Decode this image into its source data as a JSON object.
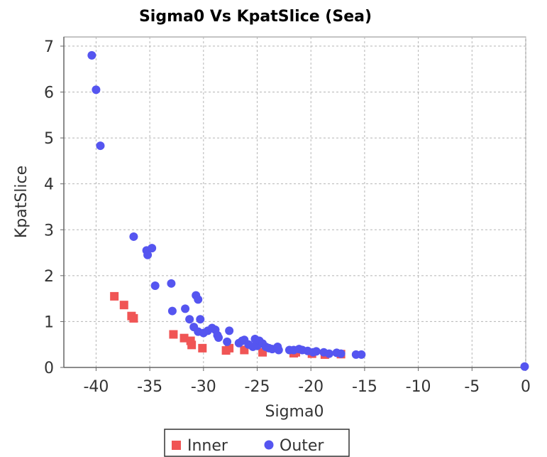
{
  "chart_data": {
    "type": "scatter",
    "title": "Sigma0 Vs KpatSlice (Sea)",
    "xlabel": "Sigma0",
    "ylabel": "KpatSlice",
    "xlim": [
      -43,
      0
    ],
    "ylim": [
      0,
      7.2
    ],
    "xticks": [
      -40,
      -35,
      -30,
      -25,
      -20,
      -15,
      -10,
      -5,
      0
    ],
    "yticks": [
      0,
      1,
      2,
      3,
      4,
      5,
      6,
      7
    ],
    "grid": true,
    "legend_position": "bottom",
    "series": [
      {
        "name": "Inner",
        "marker": "square",
        "color": "#f05555",
        "points": [
          [
            -38.3,
            1.55
          ],
          [
            -37.4,
            1.36
          ],
          [
            -36.7,
            1.12
          ],
          [
            -36.5,
            1.07
          ],
          [
            -32.8,
            0.72
          ],
          [
            -31.8,
            0.64
          ],
          [
            -31.2,
            0.58
          ],
          [
            -31.1,
            0.49
          ],
          [
            -30.1,
            0.42
          ],
          [
            -27.9,
            0.37
          ],
          [
            -27.6,
            0.42
          ],
          [
            -26.2,
            0.38
          ],
          [
            -24.5,
            0.33
          ],
          [
            -21.6,
            0.31
          ],
          [
            -21.4,
            0.33
          ],
          [
            -19.9,
            0.3
          ],
          [
            -18.7,
            0.28
          ],
          [
            -17.2,
            0.29
          ]
        ]
      },
      {
        "name": "Outer",
        "marker": "circle",
        "color": "#5555f0",
        "points": [
          [
            -40.4,
            6.8
          ],
          [
            -40.0,
            6.05
          ],
          [
            -39.6,
            4.83
          ],
          [
            -36.5,
            2.85
          ],
          [
            -35.3,
            2.55
          ],
          [
            -35.2,
            2.45
          ],
          [
            -34.8,
            2.6
          ],
          [
            -34.5,
            1.78
          ],
          [
            -33.0,
            1.83
          ],
          [
            -32.9,
            1.23
          ],
          [
            -31.7,
            1.28
          ],
          [
            -31.3,
            1.05
          ],
          [
            -30.9,
            0.88
          ],
          [
            -30.7,
            1.57
          ],
          [
            -30.5,
            1.48
          ],
          [
            -30.5,
            0.78
          ],
          [
            -30.3,
            1.05
          ],
          [
            -30.0,
            0.75
          ],
          [
            -29.6,
            0.8
          ],
          [
            -29.2,
            0.86
          ],
          [
            -28.9,
            0.82
          ],
          [
            -28.7,
            0.7
          ],
          [
            -28.6,
            0.65
          ],
          [
            -27.8,
            0.56
          ],
          [
            -27.6,
            0.8
          ],
          [
            -26.7,
            0.53
          ],
          [
            -26.4,
            0.58
          ],
          [
            -26.2,
            0.6
          ],
          [
            -25.8,
            0.5
          ],
          [
            -25.4,
            0.45
          ],
          [
            -25.2,
            0.62
          ],
          [
            -25.0,
            0.47
          ],
          [
            -24.8,
            0.58
          ],
          [
            -24.5,
            0.52
          ],
          [
            -24.2,
            0.45
          ],
          [
            -23.9,
            0.42
          ],
          [
            -23.6,
            0.4
          ],
          [
            -23.1,
            0.45
          ],
          [
            -23.0,
            0.38
          ],
          [
            -22.0,
            0.38
          ],
          [
            -21.6,
            0.38
          ],
          [
            -21.1,
            0.4
          ],
          [
            -20.8,
            0.38
          ],
          [
            -20.3,
            0.36
          ],
          [
            -19.8,
            0.33
          ],
          [
            -19.5,
            0.35
          ],
          [
            -18.8,
            0.33
          ],
          [
            -18.3,
            0.3
          ],
          [
            -17.6,
            0.32
          ],
          [
            -17.2,
            0.3
          ],
          [
            -15.8,
            0.28
          ],
          [
            -15.3,
            0.28
          ],
          [
            -0.1,
            0.02
          ]
        ]
      }
    ]
  }
}
